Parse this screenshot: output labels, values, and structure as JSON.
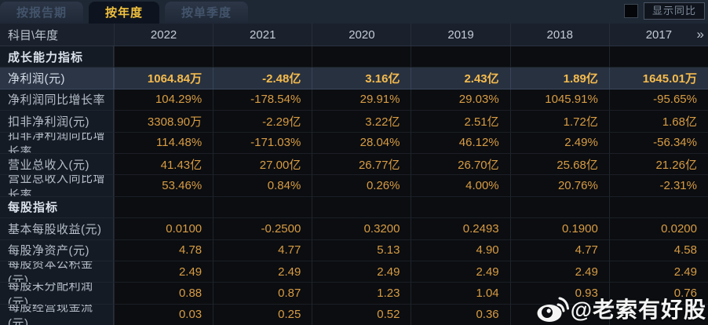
{
  "tabs": [
    {
      "label": "按报告期",
      "active": false
    },
    {
      "label": "按年度",
      "active": true
    },
    {
      "label": "按单季度",
      "active": false
    }
  ],
  "controls": {
    "show_yoy_label": "显示同比",
    "checkbox_checked": false
  },
  "table": {
    "corner_header": "科目\\年度",
    "years": [
      "2022",
      "2021",
      "2020",
      "2019",
      "2018",
      "2017"
    ],
    "more_icon": "»",
    "rows": [
      {
        "type": "section",
        "label": "成长能力指标"
      },
      {
        "type": "data",
        "label": "净利润(元)",
        "highlight": true,
        "values": [
          "1064.84万",
          "-2.48亿",
          "3.16亿",
          "2.43亿",
          "1.89亿",
          "1645.01万"
        ]
      },
      {
        "type": "data",
        "label": "净利润同比增长率",
        "values": [
          "104.29%",
          "-178.54%",
          "29.91%",
          "29.03%",
          "1045.91%",
          "-95.65%"
        ]
      },
      {
        "type": "data",
        "label": "扣非净利润(元)",
        "values": [
          "3308.90万",
          "-2.29亿",
          "3.22亿",
          "2.51亿",
          "1.72亿",
          "1.68亿"
        ]
      },
      {
        "type": "data",
        "label": "扣非净利润同比增长率",
        "values": [
          "114.48%",
          "-171.03%",
          "28.04%",
          "46.12%",
          "2.49%",
          "-56.34%"
        ]
      },
      {
        "type": "data",
        "label": "营业总收入(元)",
        "values": [
          "41.43亿",
          "27.00亿",
          "26.77亿",
          "26.70亿",
          "25.68亿",
          "21.26亿"
        ]
      },
      {
        "type": "data",
        "label": "营业总收入同比增长率",
        "values": [
          "53.46%",
          "0.84%",
          "0.26%",
          "4.00%",
          "20.76%",
          "-2.31%"
        ]
      },
      {
        "type": "section",
        "label": "每股指标"
      },
      {
        "type": "data",
        "label": "基本每股收益(元)",
        "values": [
          "0.0100",
          "-0.2500",
          "0.3200",
          "0.2493",
          "0.1900",
          "0.0200"
        ]
      },
      {
        "type": "data",
        "label": "每股净资产(元)",
        "values": [
          "4.78",
          "4.77",
          "5.13",
          "4.90",
          "4.77",
          "4.58"
        ]
      },
      {
        "type": "data",
        "label": "每股资本公积金(元)",
        "values": [
          "2.49",
          "2.49",
          "2.49",
          "2.49",
          "2.49",
          "2.49"
        ]
      },
      {
        "type": "data",
        "label": "每股未分配利润(元)",
        "values": [
          "0.88",
          "0.87",
          "1.23",
          "1.04",
          "0.93",
          "0.76"
        ]
      },
      {
        "type": "data",
        "label": "每股经营现金流(元)",
        "values": [
          "0.03",
          "0.25",
          "0.52",
          "0.36",
          "",
          ""
        ]
      }
    ]
  },
  "watermark": {
    "handle": "@老索有好股",
    "icon": "weibo-icon"
  },
  "colors": {
    "value_gold": "#d89c44",
    "highlight_gold": "#f5bb4e",
    "active_tab_text": "#f2c13e",
    "highlight_row_bg": "#28313f",
    "label_col_bg": "#151b25",
    "header_bg": "#1a212d",
    "tabbar_bg": "#1e2734"
  }
}
